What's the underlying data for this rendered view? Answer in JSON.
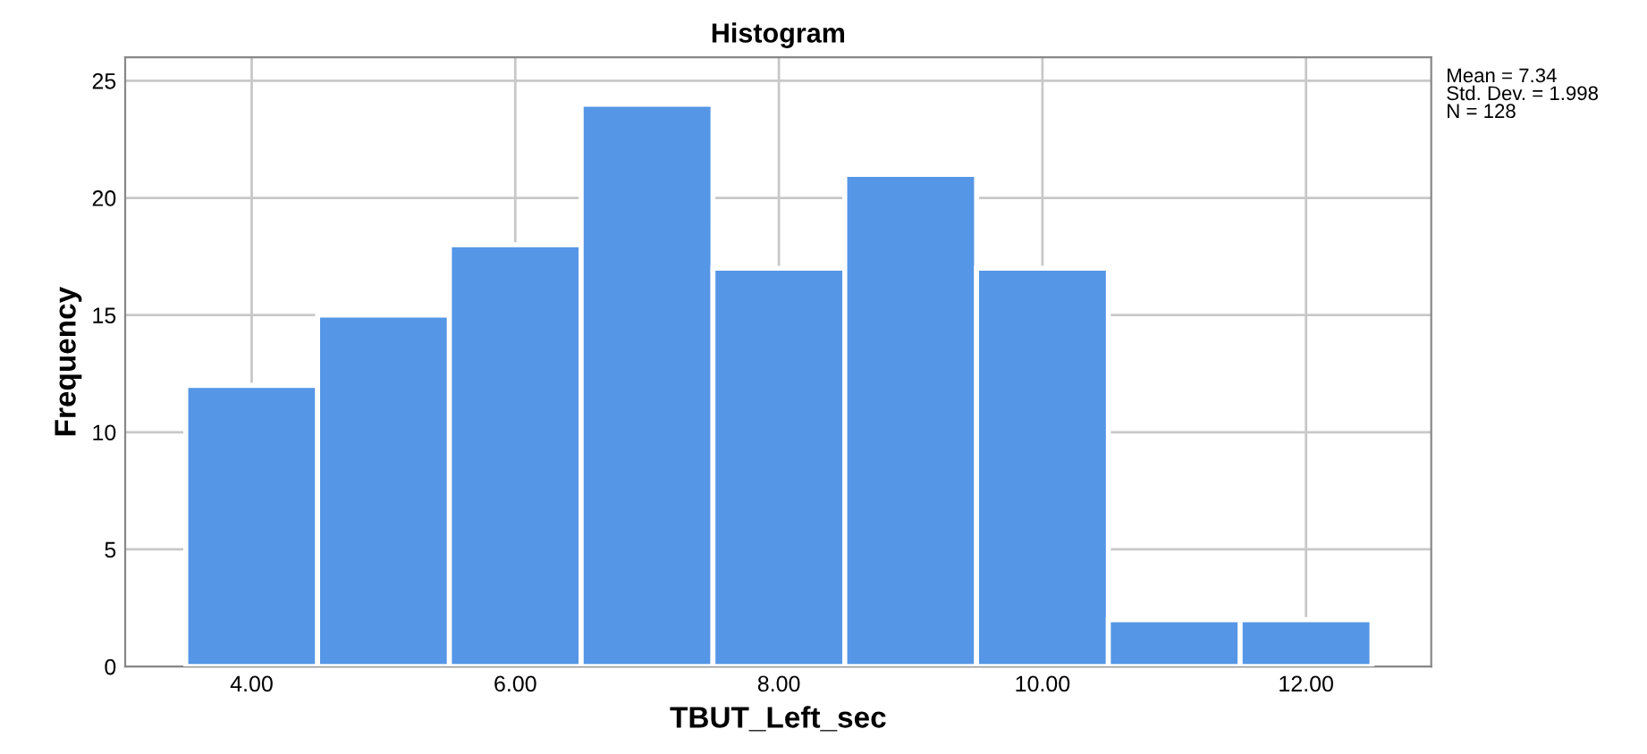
{
  "chart_data": {
    "type": "histogram",
    "title": "Histogram",
    "xlabel": "TBUT_Left_sec",
    "ylabel": "Frequency",
    "bins": [
      3.5,
      4.5,
      5.5,
      6.5,
      7.5,
      8.5,
      9.5,
      10.5,
      11.5,
      12.5
    ],
    "values": [
      12,
      15,
      18,
      24,
      17,
      21,
      17,
      2,
      2
    ],
    "color": "#5596e6",
    "xlim": [
      3.04,
      12.95
    ],
    "ylim": [
      0,
      26
    ],
    "xticks": [
      {
        "value": 4,
        "label": "4.00"
      },
      {
        "value": 6,
        "label": "6.00"
      },
      {
        "value": 8,
        "label": "8.00"
      },
      {
        "value": 10,
        "label": "10.00"
      },
      {
        "value": 12,
        "label": "12.00"
      }
    ],
    "yticks": [
      0,
      5,
      10,
      15,
      20,
      25
    ],
    "grid": true,
    "annotations": [
      "Mean = 7.34\nStd. Dev. = 1.998\nN = 128"
    ]
  }
}
